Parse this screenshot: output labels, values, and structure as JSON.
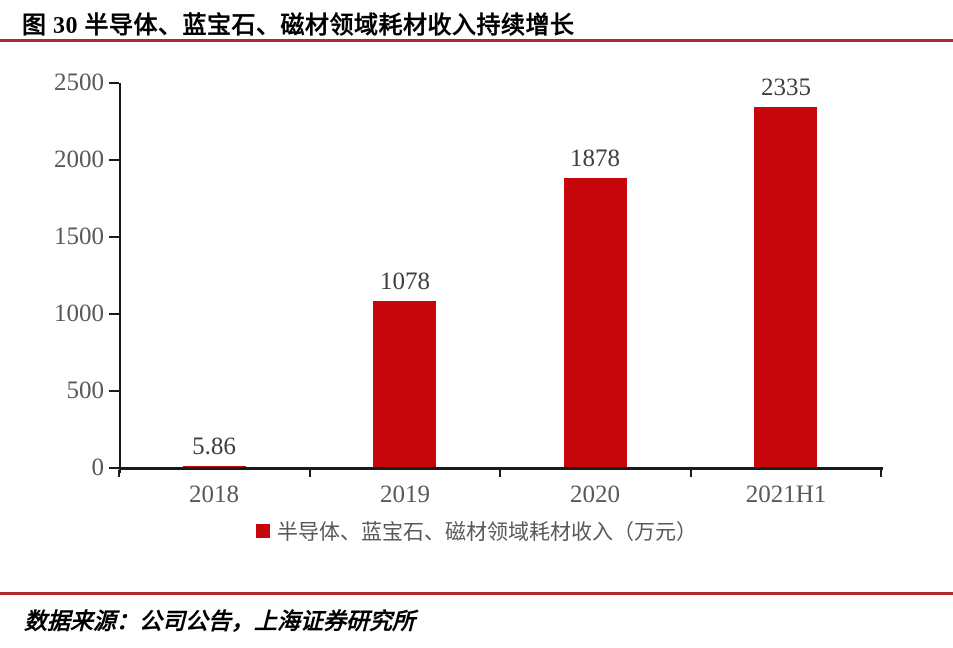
{
  "header": {
    "title": "图 30 半导体、蓝宝石、磁材领域耗材收入持续增长"
  },
  "chart_data": {
    "type": "bar",
    "title": "图 30 半导体、蓝宝石、磁材领域耗材收入持续增长",
    "categories": [
      "2018",
      "2019",
      "2020",
      "2021H1"
    ],
    "values": [
      5.86,
      1078,
      1878,
      2335
    ],
    "value_labels": [
      "5.86",
      "1078",
      "1878",
      "2335"
    ],
    "xlabel": "",
    "ylabel": "",
    "ylim": [
      0,
      2500
    ],
    "yticks": [
      0,
      500,
      1000,
      1500,
      2000,
      2500
    ],
    "grid": false,
    "legend": "半导体、蓝宝石、磁材领域耗材收入（万元）",
    "legend_position": "bottom",
    "bar_color": "#C5070C"
  },
  "footer": {
    "source": "数据来源：公司公告，上海证券研究所"
  },
  "colors": {
    "bar": "#C5070C",
    "rule": "#AD2B2E",
    "axis": "#1A1A1A",
    "tick_label": "#595959",
    "value_label": "#3F3F3F",
    "title_text": "#000000"
  }
}
